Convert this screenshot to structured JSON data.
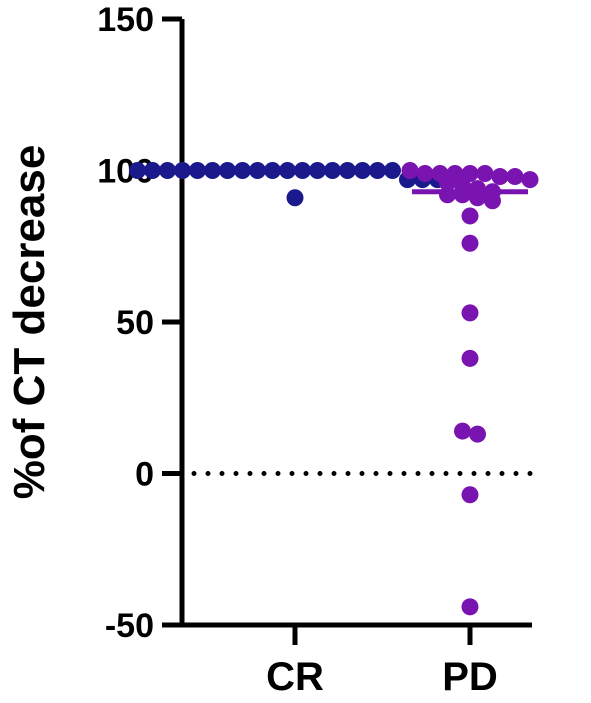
{
  "chart_data": {
    "type": "scatter",
    "title": "",
    "xlabel": "",
    "ylabel": "%of CT decrease",
    "ylim": [
      -50,
      150
    ],
    "yticks": [
      -50,
      0,
      50,
      100,
      150
    ],
    "ytick_labels": [
      "-50",
      "0",
      "50",
      "100",
      "150"
    ],
    "reference_line": {
      "y": 0,
      "style": "dotted"
    },
    "categories": [
      "CR",
      "PD"
    ],
    "series": [
      {
        "category": "CR",
        "color": "#1a1a8c",
        "median": 100,
        "values": [
          100,
          100,
          100,
          100,
          100,
          100,
          100,
          100,
          100,
          100,
          100,
          100,
          100,
          100,
          100,
          100,
          100,
          100,
          97,
          97,
          97,
          97,
          91
        ]
      },
      {
        "category": "PD",
        "color": "#7a14b0",
        "median": 93,
        "values": [
          100,
          99,
          99,
          98,
          99,
          99,
          99,
          98,
          97,
          96,
          95,
          94,
          93,
          92,
          92,
          91,
          90,
          85,
          76,
          53,
          38,
          14,
          13,
          -7,
          -44
        ]
      }
    ]
  }
}
